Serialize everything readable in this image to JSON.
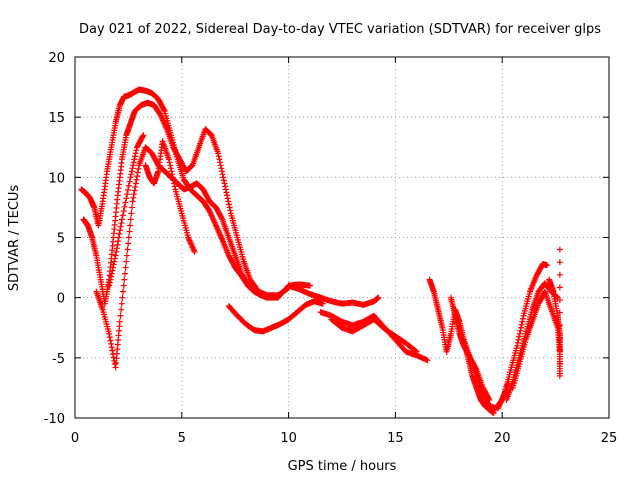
{
  "chart_data": {
    "type": "scatter",
    "title": "Day 021 of 2022, Sidereal Day-to-day VTEC variation (SDTVAR) for receiver glps",
    "xlabel": "GPS time / hours",
    "ylabel": "SDTVAR / TECUs",
    "xlim": [
      0,
      25
    ],
    "ylim": [
      -10,
      20
    ],
    "xticks": [
      0,
      5,
      10,
      15,
      20,
      25
    ],
    "yticks": [
      -10,
      -5,
      0,
      5,
      10,
      15,
      20
    ],
    "grid": true,
    "marker": "+",
    "series": [
      {
        "name": "SDTVAR",
        "color": "#ff0000",
        "tracks": [
          {
            "x": [
              0.3,
              0.5,
              0.7,
              0.9,
              1.1,
              1.3,
              1.5,
              1.7,
              1.9,
              2.1,
              2.3,
              2.5,
              2.7,
              3.0,
              3.3,
              3.6,
              3.9,
              4.2,
              4.5,
              4.8,
              5.1,
              5.4,
              5.7,
              6.0,
              6.3,
              6.6,
              6.9,
              7.2,
              7.5,
              7.8,
              8.1,
              8.4,
              8.7,
              9.0,
              9.5,
              10.0,
              10.5,
              11.0
            ],
            "y": [
              9.0,
              8.7,
              8.3,
              7.5,
              6.0,
              8.0,
              10.5,
              12.5,
              14.5,
              16.0,
              16.7,
              16.8,
              17.0,
              17.3,
              17.2,
              17.0,
              16.5,
              15.5,
              13.5,
              11.5,
              9.8,
              9.0,
              8.5,
              8.0,
              7.2,
              6.0,
              4.8,
              3.5,
              2.5,
              1.8,
              1.0,
              0.5,
              0.2,
              0.0,
              0.0,
              1.0,
              1.1,
              1.0
            ]
          },
          {
            "x": [
              0.4,
              0.6,
              0.8,
              1.0,
              1.2,
              1.4,
              1.6,
              1.8,
              2.0,
              2.2,
              2.4,
              2.6,
              2.8,
              3.1,
              3.4,
              3.7,
              4.0,
              4.3,
              4.6,
              4.9,
              5.2,
              5.5,
              5.8,
              6.1,
              6.4,
              6.7,
              7.0,
              7.3,
              7.6,
              7.9,
              8.2,
              8.6,
              9.0,
              9.5,
              10.0
            ],
            "y": [
              6.5,
              6.0,
              5.0,
              3.5,
              1.5,
              -0.5,
              1.5,
              5.0,
              8.5,
              11.5,
              13.5,
              14.5,
              15.5,
              16.0,
              16.2,
              16.0,
              15.2,
              14.0,
              12.5,
              11.5,
              10.5,
              11.0,
              12.5,
              14.0,
              13.5,
              12.0,
              9.5,
              7.0,
              5.0,
              3.0,
              1.5,
              0.5,
              0.2,
              0.2,
              0.8
            ]
          },
          {
            "x": [
              1.0,
              1.3,
              1.6,
              1.9,
              2.1,
              2.4,
              2.7,
              3.0,
              3.3,
              3.6,
              3.9,
              4.2,
              4.5,
              4.8,
              5.1,
              5.4,
              5.7,
              6.0,
              6.3,
              6.6,
              6.9,
              7.2,
              7.5,
              7.8,
              8.1,
              8.4
            ],
            "y": [
              0.5,
              -1.0,
              -3.0,
              -5.8,
              -2.0,
              3.0,
              8.0,
              11.0,
              12.5,
              12.0,
              11.0,
              10.5,
              10.0,
              9.5,
              9.0,
              9.2,
              9.5,
              9.0,
              8.0,
              7.5,
              6.5,
              5.0,
              3.5,
              2.0,
              1.0,
              0.5
            ]
          },
          {
            "x": [
              1.6,
              1.9,
              2.2,
              2.6,
              2.9,
              3.2
            ],
            "y": [
              1.0,
              3.5,
              6.5,
              10.0,
              12.5,
              13.5
            ]
          },
          {
            "x": [
              3.3,
              3.5,
              3.7,
              3.9,
              4.1,
              4.4,
              4.7,
              5.0,
              5.3,
              5.6
            ],
            "y": [
              11.0,
              10.0,
              9.5,
              10.5,
              13.0,
              11.5,
              9.0,
              7.0,
              5.0,
              3.8
            ]
          },
          {
            "x": [
              7.2,
              7.6,
              8.0,
              8.4,
              8.8,
              9.2,
              9.6,
              10.0,
              10.4,
              10.8,
              11.2,
              11.6
            ],
            "y": [
              -0.7,
              -1.5,
              -2.2,
              -2.7,
              -2.8,
              -2.5,
              -2.2,
              -1.8,
              -1.2,
              -0.6,
              -0.3,
              -0.5
            ]
          },
          {
            "x": [
              10.0,
              10.5,
              11.0,
              11.5,
              12.0,
              12.5,
              13.0,
              13.5,
              14.0,
              14.2
            ],
            "y": [
              1.0,
              0.7,
              0.3,
              0.0,
              -0.3,
              -0.5,
              -0.4,
              -0.6,
              -0.3,
              0.0
            ]
          },
          {
            "x": [
              11.5,
              12.0,
              12.5,
              13.0,
              13.5,
              14.0,
              14.5,
              15.0,
              15.5,
              16.0,
              16.5
            ],
            "y": [
              -1.2,
              -1.5,
              -2.0,
              -2.3,
              -2.0,
              -1.5,
              -2.5,
              -3.5,
              -4.5,
              -4.8,
              -5.2
            ]
          },
          {
            "x": [
              12.0,
              12.5,
              13.0,
              13.5,
              14.0,
              14.5,
              15.0,
              15.5,
              16.0
            ],
            "y": [
              -1.8,
              -2.5,
              -2.8,
              -2.3,
              -1.8,
              -2.6,
              -3.2,
              -3.8,
              -4.5
            ]
          },
          {
            "x": [
              16.6,
              16.8,
              17.0,
              17.2,
              17.4,
              17.6,
              17.8,
              18.0,
              18.2,
              18.4,
              18.6,
              18.8,
              19.0,
              19.2,
              19.4,
              19.6
            ],
            "y": [
              1.5,
              0.5,
              -1.0,
              -2.5,
              -4.5,
              -3.0,
              -1.0,
              -2.0,
              -3.5,
              -5.0,
              -6.5,
              -7.5,
              -8.5,
              -9.0,
              -9.3,
              -9.6
            ]
          },
          {
            "x": [
              17.6,
              17.8,
              18.0,
              18.2,
              18.5,
              18.8,
              19.1,
              19.4
            ],
            "y": [
              0.0,
              -1.5,
              -3.0,
              -4.0,
              -5.0,
              -6.0,
              -7.5,
              -8.5
            ]
          },
          {
            "x": [
              18.2,
              18.5,
              18.8,
              19.1,
              19.4,
              19.7,
              20.0,
              20.3
            ],
            "y": [
              -3.5,
              -5.0,
              -6.5,
              -8.0,
              -9.0,
              -9.2,
              -8.5,
              -7.0
            ]
          },
          {
            "x": [
              19.8,
              20.1,
              20.4,
              20.7,
              21.0,
              21.3,
              21.6,
              21.9,
              22.1
            ],
            "y": [
              -9.2,
              -8.0,
              -6.0,
              -4.0,
              -1.5,
              0.5,
              1.8,
              2.8,
              2.7
            ]
          },
          {
            "x": [
              20.2,
              20.5,
              20.8,
              21.1,
              21.4,
              21.7,
              22.0,
              22.3,
              22.6
            ],
            "y": [
              -8.5,
              -7.0,
              -5.0,
              -3.0,
              -1.0,
              0.5,
              1.2,
              0.5,
              0.0
            ]
          },
          {
            "x": [
              20.5,
              20.8,
              21.1,
              21.4,
              21.7,
              22.0,
              22.3,
              22.6,
              22.7
            ],
            "y": [
              -7.5,
              -5.5,
              -3.5,
              -2.0,
              -0.5,
              0.5,
              -1.0,
              -2.5,
              -4.5
            ]
          },
          {
            "x": [
              22.2,
              22.4,
              22.6,
              22.7,
              22.7,
              22.7,
              22.7
            ],
            "y": [
              1.5,
              0.5,
              -1.5,
              -3.0,
              -4.5,
              -6.5,
              4.0
            ]
          }
        ]
      }
    ]
  }
}
